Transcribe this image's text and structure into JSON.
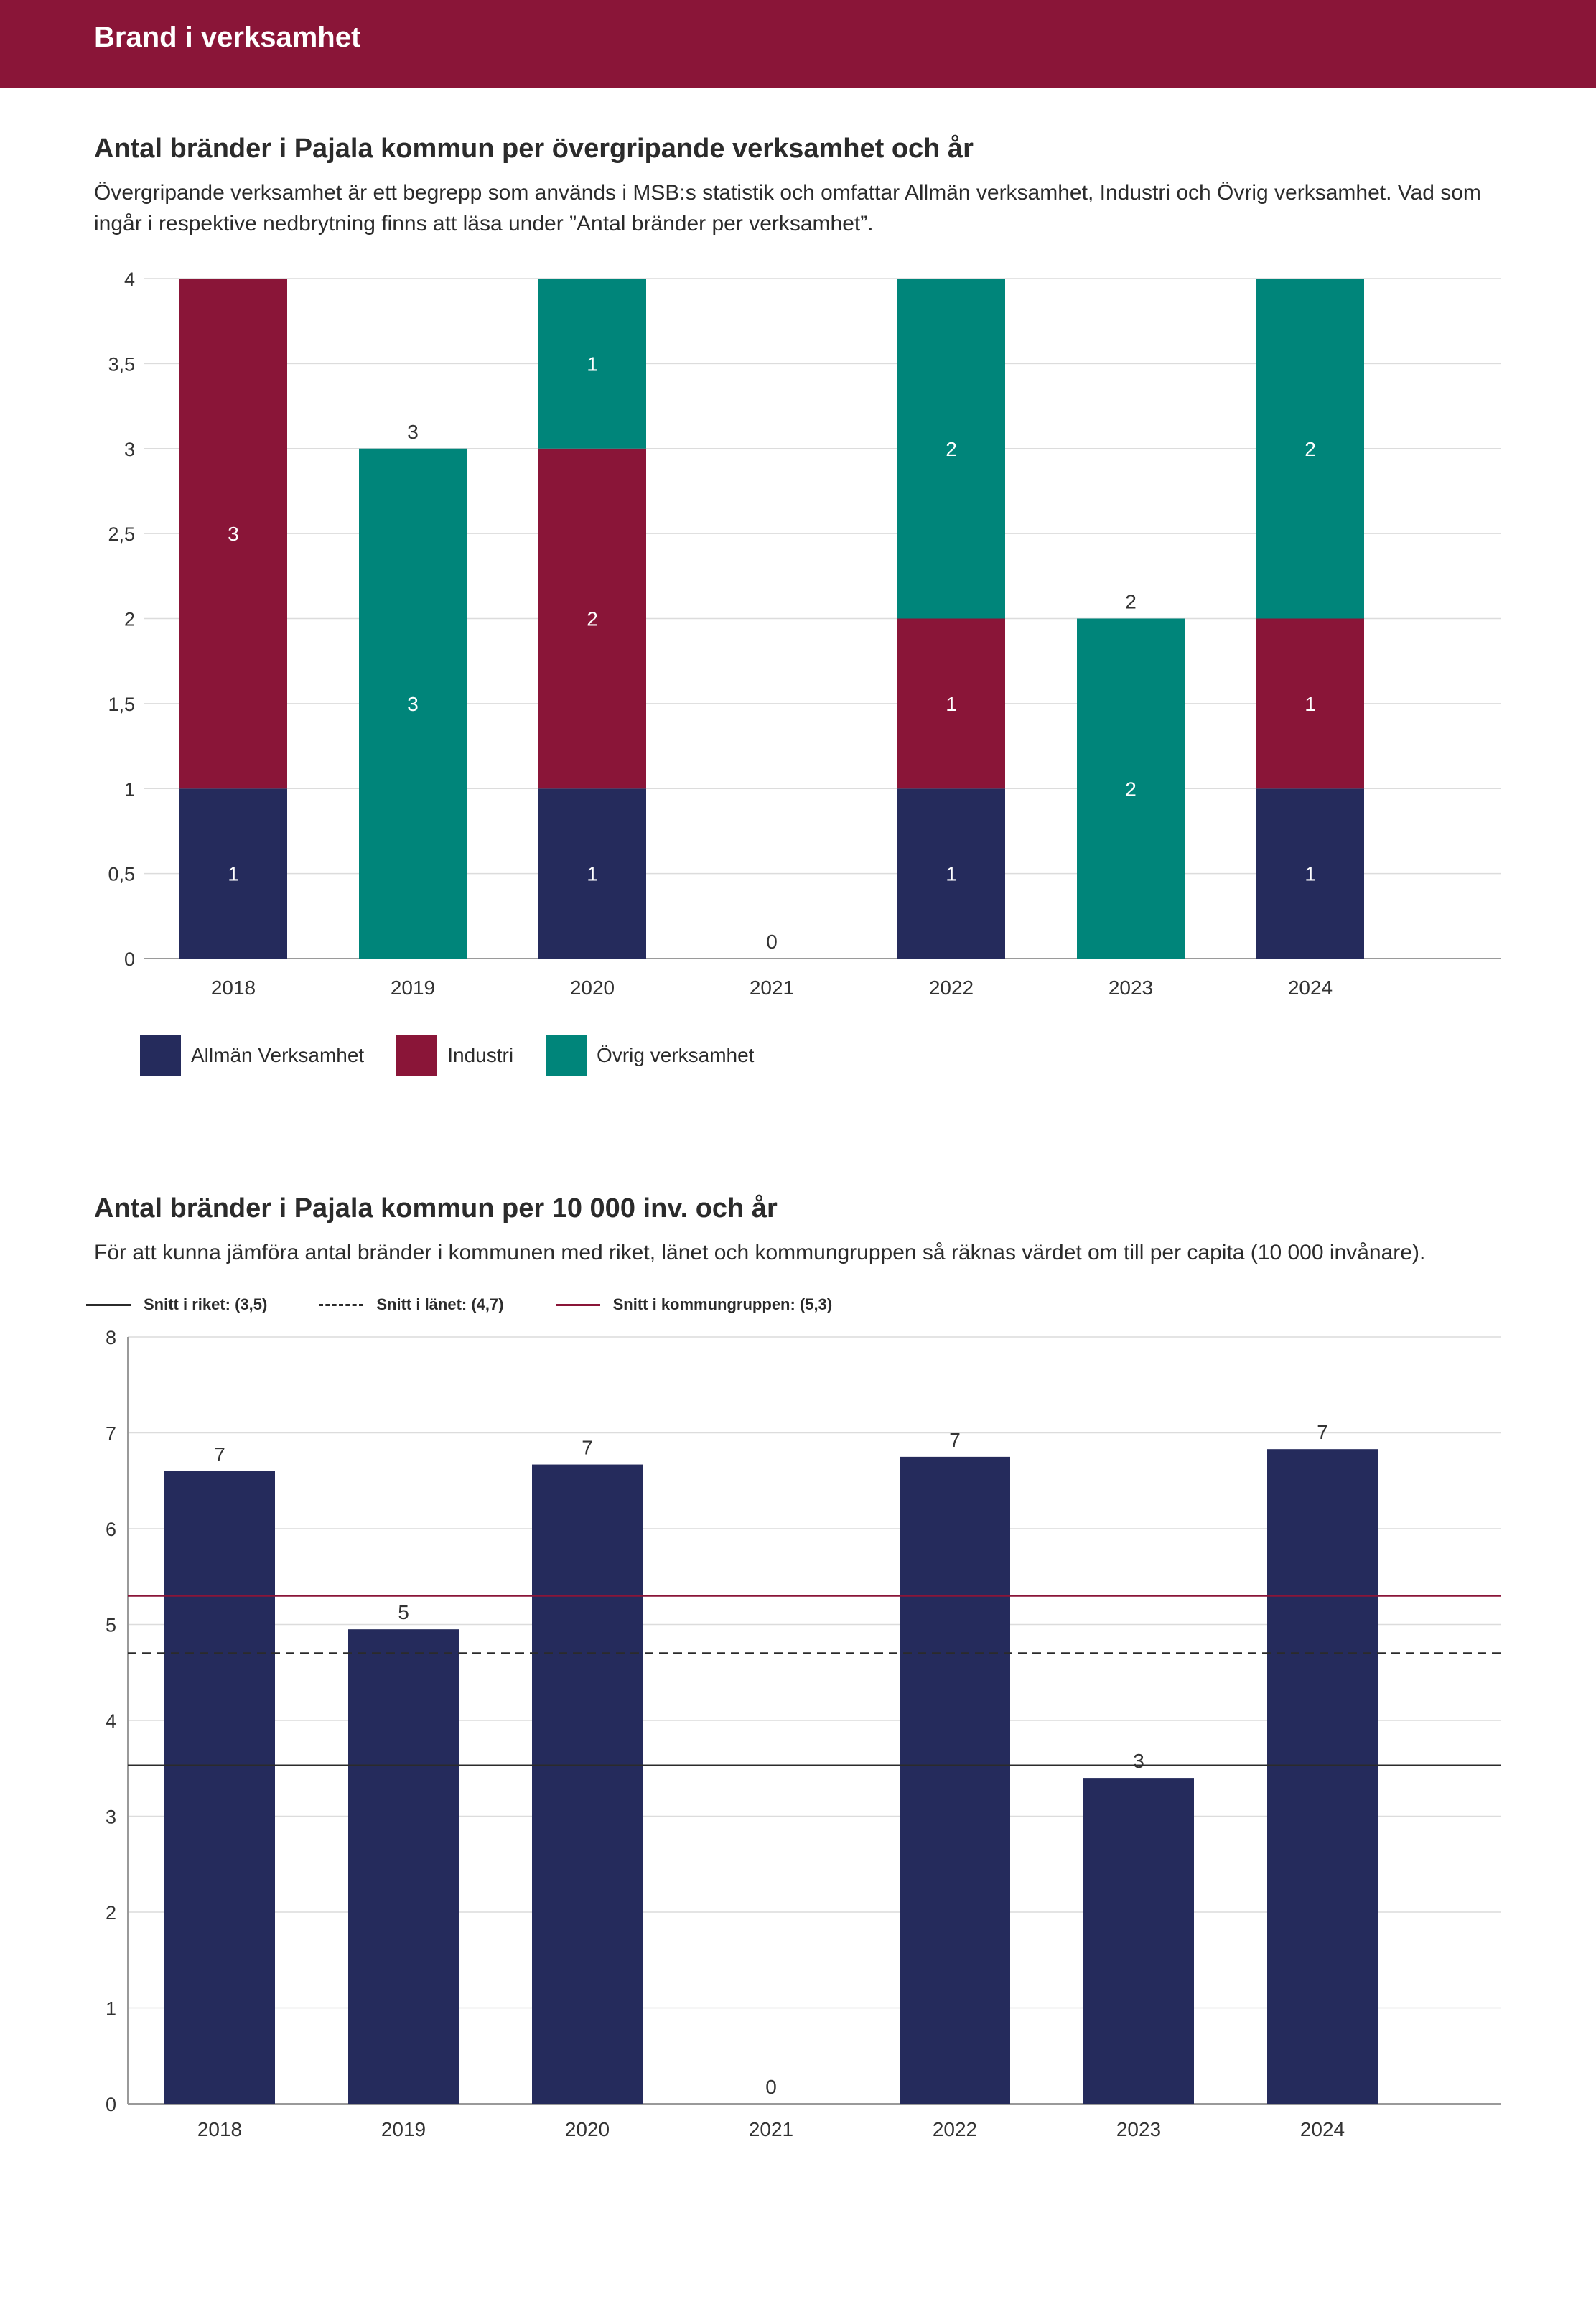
{
  "header": {
    "title": "Brand i verksamhet"
  },
  "section1": {
    "title": "Antal bränder i Pajala kommun per övergripande verksamhet och år",
    "description": "Övergripande verksamhet är ett begrepp som används i MSB:s statistik och omfattar Allmän verksamhet, Industri och Övrig verksamhet. Vad som ingår i respektive nedbrytning finns att läsa under ”Antal bränder per verksamhet”."
  },
  "section2": {
    "title": "Antal bränder i Pajala kommun per 10 000 inv. och år",
    "description": "För att kunna jämföra antal bränder i kommunen med riket, länet och kommungruppen så räknas värdet om till per capita (10 000 invånare)."
  },
  "chart_data": [
    {
      "type": "bar",
      "stacked": true,
      "title": "Antal bränder i Pajala kommun per övergripande verksamhet och år",
      "categories": [
        "2018",
        "2019",
        "2020",
        "2021",
        "2022",
        "2023",
        "2024"
      ],
      "ylim": [
        0,
        4
      ],
      "yticks": [
        0,
        0.5,
        1,
        1.5,
        2,
        2.5,
        3,
        3.5,
        4
      ],
      "ytick_labels": [
        "0",
        "0,5",
        "1",
        "1,5",
        "2",
        "2,5",
        "3",
        "3,5",
        "4"
      ],
      "grid": true,
      "series": [
        {
          "name": "Allmän Verksamhet",
          "color": "#252b5c",
          "values": [
            1,
            0,
            1,
            0,
            1,
            0,
            1
          ]
        },
        {
          "name": "Industri",
          "color": "#8a1538",
          "values": [
            3,
            0,
            2,
            0,
            1,
            0,
            1
          ]
        },
        {
          "name": "Övrig verksamhet",
          "color": "#00857a",
          "values": [
            0,
            3,
            1,
            0,
            2,
            2,
            2
          ]
        }
      ],
      "totals": [
        4,
        3,
        4,
        0,
        4,
        2,
        4
      ],
      "total_labels": [
        "",
        "3",
        "",
        "0",
        "",
        "2",
        ""
      ],
      "legend": "bottom-left"
    },
    {
      "type": "bar",
      "title": "Antal bränder i Pajala kommun per 10 000 inv. och år",
      "categories": [
        "2018",
        "2019",
        "2020",
        "2021",
        "2022",
        "2023",
        "2024"
      ],
      "values": [
        6.6,
        4.95,
        6.67,
        0,
        6.75,
        3.4,
        6.83
      ],
      "value_labels": [
        "7",
        "5",
        "7",
        "0",
        "7",
        "3",
        "7"
      ],
      "bar_color": "#252b5c",
      "ylim": [
        0,
        8
      ],
      "yticks": [
        0,
        1,
        2,
        3,
        4,
        5,
        6,
        7,
        8
      ],
      "ytick_labels": [
        "0",
        "1",
        "2",
        "3",
        "4",
        "5",
        "6",
        "7",
        "8"
      ],
      "grid": true,
      "reference_lines": [
        {
          "name": "Snitt i riket: (3,5)",
          "value": 3.53,
          "style": "solid",
          "color": "#2b2b2b"
        },
        {
          "name": "Snitt i länet: (4,7)",
          "value": 4.7,
          "style": "dashed",
          "color": "#2b2b2b"
        },
        {
          "name": "Snitt i kommungruppen: (5,3)",
          "value": 5.3,
          "style": "solid",
          "color": "#8a1538"
        }
      ],
      "legend": "top-left"
    }
  ]
}
